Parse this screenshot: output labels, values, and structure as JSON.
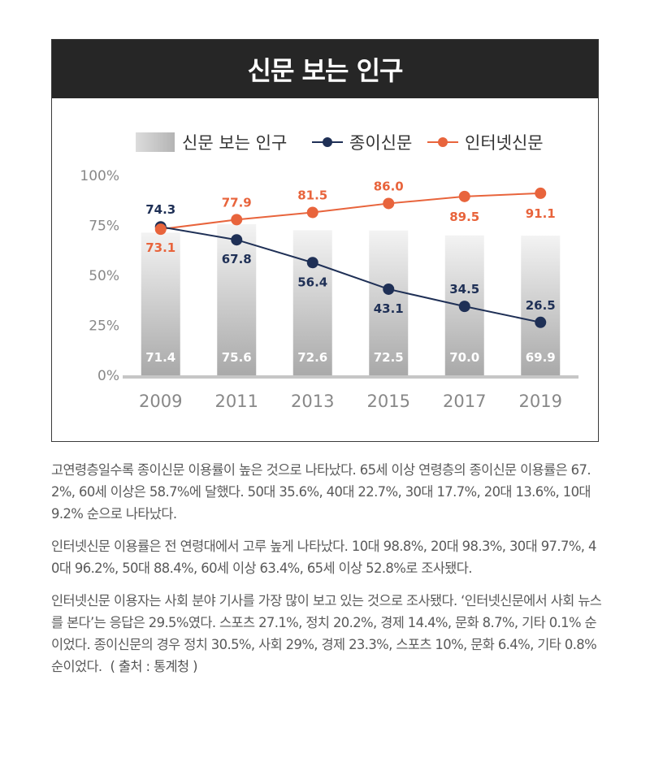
{
  "title": "신문 보는 인구",
  "chart_data": {
    "type": "bar",
    "categories": [
      "2009",
      "2011",
      "2013",
      "2015",
      "2017",
      "2019"
    ],
    "ylim": [
      0,
      100
    ],
    "yticks": [
      "0%",
      "25%",
      "50%",
      "75%",
      "100%"
    ],
    "grid": false,
    "legend_position": "top",
    "series": [
      {
        "name": "신문 보는 인구",
        "kind": "bar",
        "color": "#cfcfcf",
        "values": [
          71.4,
          75.6,
          72.6,
          72.5,
          70.0,
          69.9
        ]
      },
      {
        "name": "종이신문",
        "kind": "line",
        "color": "#1f3056",
        "values": [
          74.3,
          67.8,
          56.4,
          43.1,
          34.5,
          26.5
        ]
      },
      {
        "name": "인터넷신문",
        "kind": "line",
        "color": "#e8643c",
        "values": [
          73.1,
          77.9,
          81.5,
          86.0,
          89.5,
          91.1
        ]
      }
    ],
    "value_labels": {
      "bar": [
        "71.4",
        "75.6",
        "72.6",
        "72.5",
        "70.0",
        "69.9"
      ],
      "paper": [
        "74.3",
        "67.8",
        "56.4",
        "43.1",
        "34.5",
        "26.5"
      ],
      "internet": [
        "73.1",
        "77.9",
        "81.5",
        "86.0",
        "89.5",
        "91.1"
      ]
    }
  },
  "paragraphs": [
    "고연령층일수록 종이신문 이용률이 높은 것으로 나타났다. 65세 이상 연령층의 종이신문 이용률은 67.2%, 60세 이상은 58.7%에 달했다. 50대 35.6%, 40대 22.7%, 30대 17.7%, 20대 13.6%, 10대 9.2% 순으로 나타났다.",
    "인터넷신문 이용률은 전 연령대에서 고루 높게 나타났다. 10대 98.8%, 20대 98.3%, 30대 97.7%, 40대 96.2%, 50대 88.4%, 60세 이상 63.4%, 65세 이상 52.8%로 조사됐다.",
    "인터넷신문 이용자는 사회 분야 기사를 가장 많이 보고 있는 것으로 조사됐다. ‘인터넷신문에서 사회 뉴스를 본다’는 응답은 29.5%였다. 스포츠 27.1%, 정치 20.2%, 경제 14.4%, 문화 8.7%, 기타 0.1% 순이었다. 종이신문의 경우 정치 30.5%, 사회 29%, 경제 23.3%, 스포츠 10%, 문화 6.4%, 기타 0.8% 순이었다."
  ],
  "source": "( 출처 : 통계청 )"
}
